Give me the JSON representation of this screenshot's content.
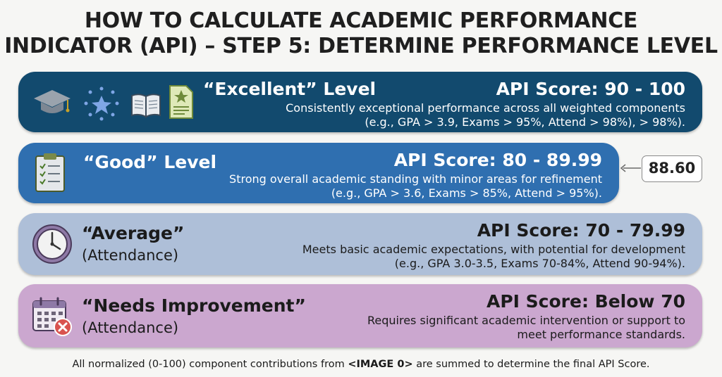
{
  "title": {
    "line1": "HOW TO CALCULATE ACADEMIC PERFORMANCE",
    "line2": "INDICATOR (API) – STEP 5: DETERMINE PERFORMANCE LEVEL"
  },
  "levels": [
    {
      "name": "“Excellent” Level",
      "score": "API Score: 90 - 100",
      "desc1": "Consistently exceptional performance across all weighted components",
      "desc2": "(e.g., GPA > 3.9, Exams > 95%, Attend > 98%), > 98%).",
      "color": "#124a6e",
      "icons": [
        "graduation-cap-icon",
        "stars-icon",
        "book-icon",
        "certificate-icon"
      ]
    },
    {
      "name": "“Good” Level",
      "score": "API Score: 80 - 89.99",
      "desc1": "Strong overall academic standing with minor areas for refinement",
      "desc2": "(e.g., GPA > 3.6, Exams > 85%, Attend > 95%).",
      "color": "#2f6fb0",
      "icons": [
        "clipboard-checklist-icon"
      ]
    },
    {
      "name": "“Average”",
      "sub": "(Attendance)",
      "score": "API Score: 70 - 79.99",
      "desc1": "Meets basic academic expectations, with potential for development",
      "desc2": "(e.g., GPA 3.0-3.5, Exams 70-84%, Attend 90-94%).",
      "color": "#aebfd8",
      "icons": [
        "clock-icon"
      ]
    },
    {
      "name": "“Needs Improvement”",
      "sub": "(Attendance)",
      "score": "API Score: Below 70",
      "desc1": "Requires significant academic intervention or support to",
      "desc2": "meet performance standards.",
      "color": "#cba7cf",
      "icons": [
        "calendar-x-icon"
      ]
    }
  ],
  "callout": {
    "value": "88.60"
  },
  "footer": {
    "prefix": "All normalized (0-100) component contributions from ",
    "ref": "<IMAGE 0>",
    "suffix": " are summed to determine the final API Score."
  }
}
